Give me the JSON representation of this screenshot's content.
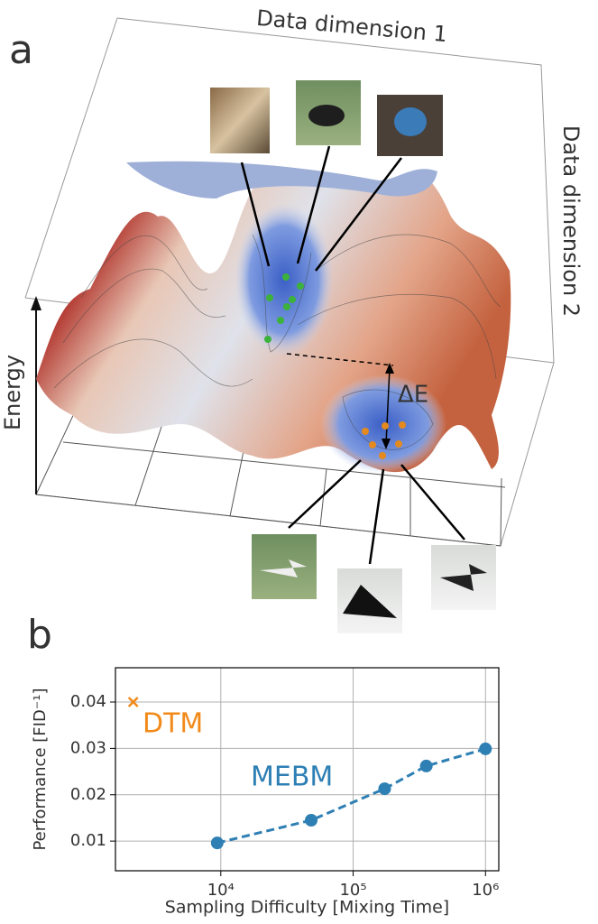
{
  "panel_a": {
    "label": "a",
    "x_axis_label": "Data dimension 1",
    "y_axis_label": "Data dimension 2",
    "z_axis_label": "Energy",
    "gap_label": "ΔE"
  },
  "chart_data": {
    "type": "line",
    "panel_label": "b",
    "xlabel": "Sampling Difficulty [Mixing Time]",
    "ylabel": "Performance [FID⁻¹]",
    "xscale": "log",
    "grid": true,
    "xlim": [
      1600,
      1260000
    ],
    "ylim": [
      0.0036,
      0.0474
    ],
    "xticks": [
      {
        "value": 10000,
        "label": "10⁴"
      },
      {
        "value": 100000,
        "label": "10⁵"
      },
      {
        "value": 1000000,
        "label": "10⁶"
      }
    ],
    "yticks": [
      0.01,
      0.02,
      0.03,
      0.04
    ],
    "series": [
      {
        "name": "DTM",
        "color": "#f28a1a",
        "marker": "x",
        "x": [
          2180
        ],
        "values": [
          0.04
        ]
      },
      {
        "name": "MEBM",
        "color": "#2e7fb4",
        "marker": "o",
        "linestyle": "dashed",
        "x": [
          9400,
          48200,
          173000,
          357000,
          1000000
        ],
        "values": [
          0.0096,
          0.0145,
          0.0213,
          0.0262,
          0.0299
        ]
      }
    ]
  }
}
